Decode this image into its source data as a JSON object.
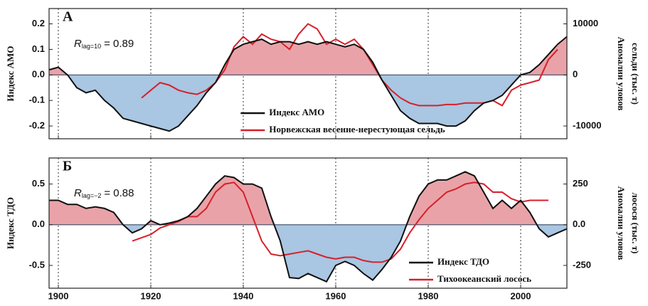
{
  "chart_data": [
    {
      "type": "line",
      "panel_label": "А",
      "stat": {
        "symbol": "R",
        "subscript": "lag=10",
        "text": "= 0.89"
      },
      "ylabel": "Индекс АМО",
      "y2label": [
        "Аномалии уловов",
        "сельди (тыс. т)"
      ],
      "x": [
        1898,
        1900,
        1902,
        1904,
        1906,
        1908,
        1910,
        1912,
        1914,
        1916,
        1918,
        1920,
        1922,
        1924,
        1926,
        1928,
        1930,
        1932,
        1934,
        1936,
        1938,
        1940,
        1942,
        1944,
        1946,
        1948,
        1950,
        1952,
        1954,
        1956,
        1958,
        1960,
        1962,
        1964,
        1966,
        1968,
        1970,
        1972,
        1974,
        1976,
        1978,
        1980,
        1982,
        1984,
        1986,
        1988,
        1990,
        1992,
        1994,
        1996,
        1998,
        2000,
        2002,
        2004,
        2006,
        2008,
        2010
      ],
      "series": [
        {
          "name": "Индекс АМО",
          "color": "#111111",
          "fill_positive": "#e9a3a8",
          "fill_negative": "#a9c6e2",
          "values": [
            0.02,
            0.03,
            0.0,
            -0.05,
            -0.07,
            -0.06,
            -0.1,
            -0.13,
            -0.17,
            -0.18,
            -0.19,
            -0.2,
            -0.21,
            -0.22,
            -0.2,
            -0.16,
            -0.12,
            -0.07,
            -0.03,
            0.04,
            0.1,
            0.12,
            0.13,
            0.14,
            0.12,
            0.13,
            0.13,
            0.12,
            0.13,
            0.12,
            0.13,
            0.12,
            0.11,
            0.12,
            0.1,
            0.05,
            -0.02,
            -0.08,
            -0.14,
            -0.17,
            -0.19,
            -0.19,
            -0.19,
            -0.2,
            -0.2,
            -0.18,
            -0.14,
            -0.11,
            -0.1,
            -0.08,
            -0.04,
            0.0,
            0.01,
            0.04,
            0.08,
            0.12,
            0.15
          ]
        },
        {
          "name": "Норвежская весенне-нерестующая сельдь",
          "color": "#d6202a",
          "axis": "y2",
          "values": [
            null,
            null,
            null,
            null,
            null,
            null,
            null,
            null,
            null,
            null,
            -4500,
            -3000,
            -1500,
            -2000,
            -3000,
            -3500,
            -3800,
            -3000,
            -1500,
            1000,
            5500,
            7500,
            6000,
            8000,
            7000,
            6500,
            5000,
            8000,
            10000,
            9000,
            6000,
            7000,
            6000,
            7000,
            5000,
            2000,
            -1000,
            -3000,
            -4500,
            -5500,
            -6000,
            -6000,
            -6000,
            -5800,
            -5800,
            -5500,
            -5500,
            -5500,
            -5000,
            -6000,
            -3000,
            -2000,
            -1500,
            -1000,
            3000,
            5000,
            null
          ]
        }
      ],
      "xlim": [
        1898,
        2010
      ],
      "xticks": [
        1900,
        1920,
        1940,
        1960,
        1980,
        2000
      ],
      "ylim": [
        -0.25,
        0.26
      ],
      "yticks": [
        -0.2,
        -0.1,
        {
          "value": 0,
          "label": "0.0"
        },
        0.1,
        0.2
      ],
      "y2lim": [
        -12500,
        13000
      ],
      "y2ticks": [
        -10000,
        0,
        10000
      ],
      "grid": true,
      "legend_position": "lower center"
    },
    {
      "type": "line",
      "panel_label": "Б",
      "stat": {
        "symbol": "R",
        "subscript": "lag=−2",
        "text": "= 0.88"
      },
      "ylabel": "Индекс ТДО",
      "y2label": [
        "Аномалии уловов",
        "лосося (тыс. т)"
      ],
      "x": [
        1898,
        1900,
        1902,
        1904,
        1906,
        1908,
        1910,
        1912,
        1914,
        1916,
        1918,
        1920,
        1922,
        1924,
        1926,
        1928,
        1930,
        1932,
        1934,
        1936,
        1938,
        1940,
        1942,
        1944,
        1946,
        1948,
        1950,
        1952,
        1954,
        1956,
        1958,
        1960,
        1962,
        1964,
        1966,
        1968,
        1970,
        1972,
        1974,
        1976,
        1978,
        1980,
        1982,
        1984,
        1986,
        1988,
        1990,
        1992,
        1994,
        1996,
        1998,
        2000,
        2002,
        2004,
        2006,
        2008,
        2010
      ],
      "series": [
        {
          "name": "Индекс ТДО",
          "color": "#111111",
          "fill_positive": "#e9a3a8",
          "fill_negative": "#a9c6e2",
          "values": [
            0.3,
            0.3,
            0.25,
            0.25,
            0.2,
            0.22,
            0.2,
            0.15,
            0.0,
            -0.1,
            -0.05,
            0.05,
            0.0,
            0.02,
            0.05,
            0.1,
            0.2,
            0.35,
            0.5,
            0.6,
            0.58,
            0.5,
            0.5,
            0.45,
            0.1,
            -0.2,
            -0.65,
            -0.66,
            -0.6,
            -0.65,
            -0.7,
            -0.5,
            -0.45,
            -0.5,
            -0.6,
            -0.68,
            -0.55,
            -0.4,
            -0.2,
            0.1,
            0.35,
            0.5,
            0.55,
            0.55,
            0.6,
            0.65,
            0.6,
            0.4,
            0.2,
            0.3,
            0.2,
            0.3,
            0.15,
            -0.05,
            -0.15,
            -0.1,
            -0.05
          ]
        },
        {
          "name": "Тихоокеанский лосось",
          "color": "#d6202a",
          "axis": "y2",
          "values": [
            null,
            null,
            null,
            null,
            null,
            null,
            null,
            null,
            null,
            -100,
            -80,
            -60,
            -20,
            0,
            20,
            50,
            50,
            100,
            200,
            250,
            260,
            200,
            50,
            -100,
            -180,
            -190,
            -180,
            -170,
            -160,
            -180,
            -200,
            -210,
            -200,
            -200,
            -220,
            -230,
            -230,
            -210,
            -150,
            -50,
            30,
            100,
            150,
            200,
            220,
            250,
            260,
            250,
            200,
            200,
            160,
            140,
            150,
            150,
            150,
            null,
            null
          ]
        }
      ],
      "xlim": [
        1898,
        2010
      ],
      "xticks": [
        1900,
        1920,
        1940,
        1960,
        1980,
        2000
      ],
      "ylim": [
        -0.78,
        0.82
      ],
      "yticks": [
        -0.5,
        {
          "value": 0,
          "label": "0.0"
        },
        0.5
      ],
      "y2lim": [
        -390,
        410
      ],
      "y2ticks": [
        -250,
        {
          "value": 0,
          "label": "0.0"
        },
        250
      ],
      "grid": true,
      "legend_position": "lower right",
      "show_xtick_labels": true
    }
  ]
}
